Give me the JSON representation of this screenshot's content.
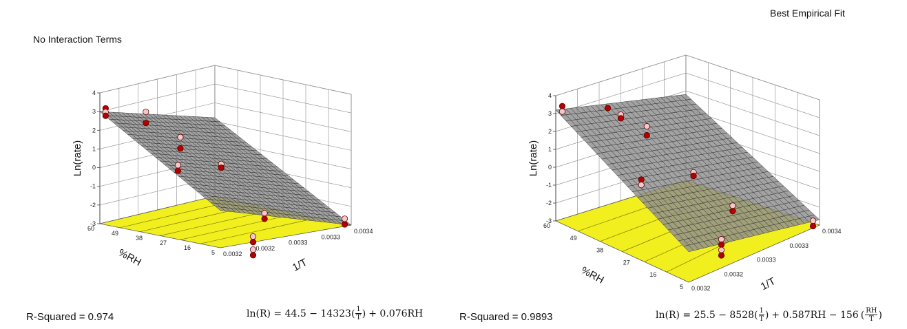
{
  "chart_data": [
    {
      "type": "surface3d",
      "title": "No Interaction Terms",
      "zlabel": "Ln(rate)",
      "xlabel": "%RH",
      "ylabel": "1/T",
      "rh_ticks": [
        "60",
        "49",
        "38",
        "27",
        "16",
        "5"
      ],
      "invT_ticks": [
        "0.0032",
        "0.0032",
        "0.0033",
        "0.0033",
        "0.0034"
      ],
      "z_ticks": [
        "4",
        "3",
        "2",
        "1",
        "0",
        "-1",
        "-2",
        "-3"
      ],
      "rh_range": [
        5,
        60
      ],
      "invT_range": [
        0.0032,
        0.0034
      ],
      "z_range": [
        -3,
        4
      ],
      "model": {
        "intercept": 44.5,
        "invT_coef": -14323,
        "rh_coef": 0.076,
        "interaction_coef": 0
      },
      "points": [
        {
          "rh": 60,
          "invT": 0.00321,
          "z": 3.1
        },
        {
          "rh": 60,
          "invT": 0.00321,
          "z": 2.9
        },
        {
          "rh": 60,
          "invT": 0.00321,
          "z": 2.7
        },
        {
          "rh": 30,
          "invT": 0.00322,
          "z": 0.7
        },
        {
          "rh": 30,
          "invT": 0.00322,
          "z": 0.4
        },
        {
          "rh": 60,
          "invT": 0.00328,
          "z": 2.4
        },
        {
          "rh": 60,
          "invT": 0.00328,
          "z": 1.8
        },
        {
          "rh": 30,
          "invT": 0.00329,
          "z": 0.3
        },
        {
          "rh": 30,
          "invT": 0.00329,
          "z": 0.1
        },
        {
          "rh": 60,
          "invT": 0.00334,
          "z": 0.6
        },
        {
          "rh": 60,
          "invT": 0.00334,
          "z": 0.0
        },
        {
          "rh": 5,
          "invT": 0.00325,
          "z": -2.7
        },
        {
          "rh": 5,
          "invT": 0.00325,
          "z": -3.0
        },
        {
          "rh": 5,
          "invT": 0.00325,
          "z": -3.4
        },
        {
          "rh": 5,
          "invT": 0.00325,
          "z": -3.7
        },
        {
          "rh": 30,
          "invT": 0.00336,
          "z": -2.8
        },
        {
          "rh": 30,
          "invT": 0.00336,
          "z": -3.1
        },
        {
          "rh": 5,
          "invT": 0.00339,
          "z": -2.6
        },
        {
          "rh": 5,
          "invT": 0.00339,
          "z": -2.9
        }
      ],
      "r_squared_label": "R-Squared = 0.974",
      "equation": {
        "lhs": "ln(R) = 44.5 − 14323",
        "frac1_num": "1",
        "frac1_den": "T",
        "tail": "+ 0.076RH",
        "extra": "",
        "frac2_num": "",
        "frac2_den": ""
      }
    },
    {
      "type": "surface3d",
      "title": "Best Empirical Fit",
      "zlabel": "Ln(rate)",
      "xlabel": "%RH",
      "ylabel": "1/T",
      "rh_ticks": [
        "60",
        "49",
        "38",
        "27",
        "16",
        "5"
      ],
      "invT_ticks": [
        "0.0032",
        "0.0032",
        "0.0033",
        "0.0033",
        "0.0034"
      ],
      "z_ticks": [
        "4",
        "3",
        "2",
        "1",
        "0",
        "-1",
        "-2",
        "-3"
      ],
      "rh_range": [
        5,
        60
      ],
      "invT_range": [
        0.0032,
        0.0034
      ],
      "z_range": [
        -3,
        4
      ],
      "model": {
        "intercept": 25.5,
        "invT_coef": -8528,
        "rh_coef": 0.587,
        "interaction_coef": -156
      },
      "points": [
        {
          "rh": 60,
          "invT": 0.00321,
          "z": 3.3
        },
        {
          "rh": 60,
          "invT": 0.00321,
          "z": 3.0
        },
        {
          "rh": 30,
          "invT": 0.00322,
          "z": 0.9
        },
        {
          "rh": 30,
          "invT": 0.00322,
          "z": 0.6
        },
        {
          "rh": 60,
          "invT": 0.00328,
          "z": 2.4
        },
        {
          "rh": 60,
          "invT": 0.0033,
          "z": 1.8
        },
        {
          "rh": 60,
          "invT": 0.0033,
          "z": 1.6
        },
        {
          "rh": 30,
          "invT": 0.0033,
          "z": 0.2
        },
        {
          "rh": 30,
          "invT": 0.0033,
          "z": 0.0
        },
        {
          "rh": 60,
          "invT": 0.00334,
          "z": 0.7
        },
        {
          "rh": 60,
          "invT": 0.00334,
          "z": 0.2
        },
        {
          "rh": 5,
          "invT": 0.00325,
          "z": -1.4
        },
        {
          "rh": 5,
          "invT": 0.00325,
          "z": -1.7
        },
        {
          "rh": 5,
          "invT": 0.00325,
          "z": -2.0
        },
        {
          "rh": 5,
          "invT": 0.00325,
          "z": -2.3
        },
        {
          "rh": 30,
          "invT": 0.00336,
          "z": -2.5
        },
        {
          "rh": 30,
          "invT": 0.00336,
          "z": -2.8
        },
        {
          "rh": 5,
          "invT": 0.00339,
          "z": -2.6
        },
        {
          "rh": 5,
          "invT": 0.00339,
          "z": -2.9
        }
      ],
      "r_squared_label": "R-Squared = 0.9893",
      "equation": {
        "lhs": "ln(R) = 25.5 − 8528",
        "frac1_num": "1",
        "frac1_den": "T",
        "tail": "+ 0.587RH − 156",
        "extra": "",
        "frac2_num": "RH",
        "frac2_den": "T"
      }
    }
  ],
  "colors": {
    "floor": "#f2ef1e",
    "floor_line": "#5a5a00",
    "surface": "#8f8f8f",
    "mesh": "#2a2a2a",
    "grid": "#9a9a9a",
    "point": "#b50000",
    "point_light": "#f3c8cc"
  }
}
